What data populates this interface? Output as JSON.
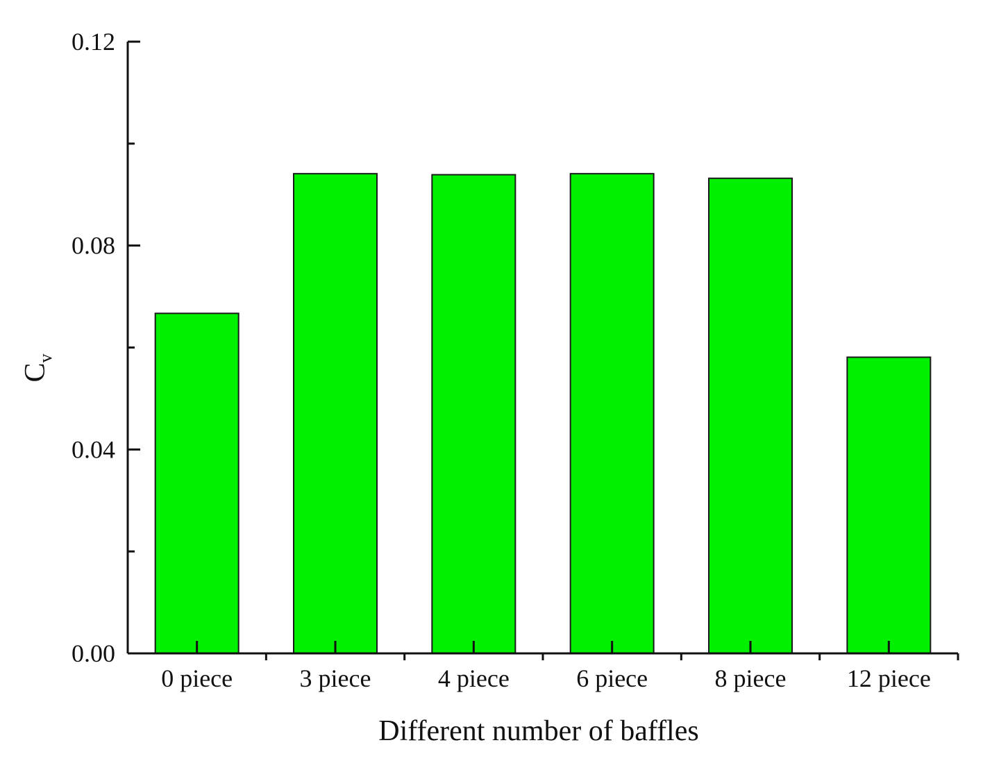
{
  "chart_data": {
    "type": "bar",
    "title": "",
    "categories": [
      "0 piece",
      "3 piece",
      "4 piece",
      "6 piece",
      "8 piece",
      "12 piece"
    ],
    "values": [
      0.0667,
      0.0941,
      0.0939,
      0.0941,
      0.0932,
      0.0581
    ],
    "xlabel": "Different number of baffles",
    "ylabel": {
      "main": "C",
      "subscript": "v"
    },
    "ylim": [
      0,
      0.12
    ],
    "yticks": [
      "0.00",
      "0.04",
      "0.08",
      "0.12"
    ],
    "minor_yticks": [
      0.02,
      0.06,
      0.1
    ],
    "grid": false,
    "colors": {
      "bar_fill": "#00f000",
      "bar_edge": "#1a1a1a",
      "axis": "#111111"
    }
  }
}
